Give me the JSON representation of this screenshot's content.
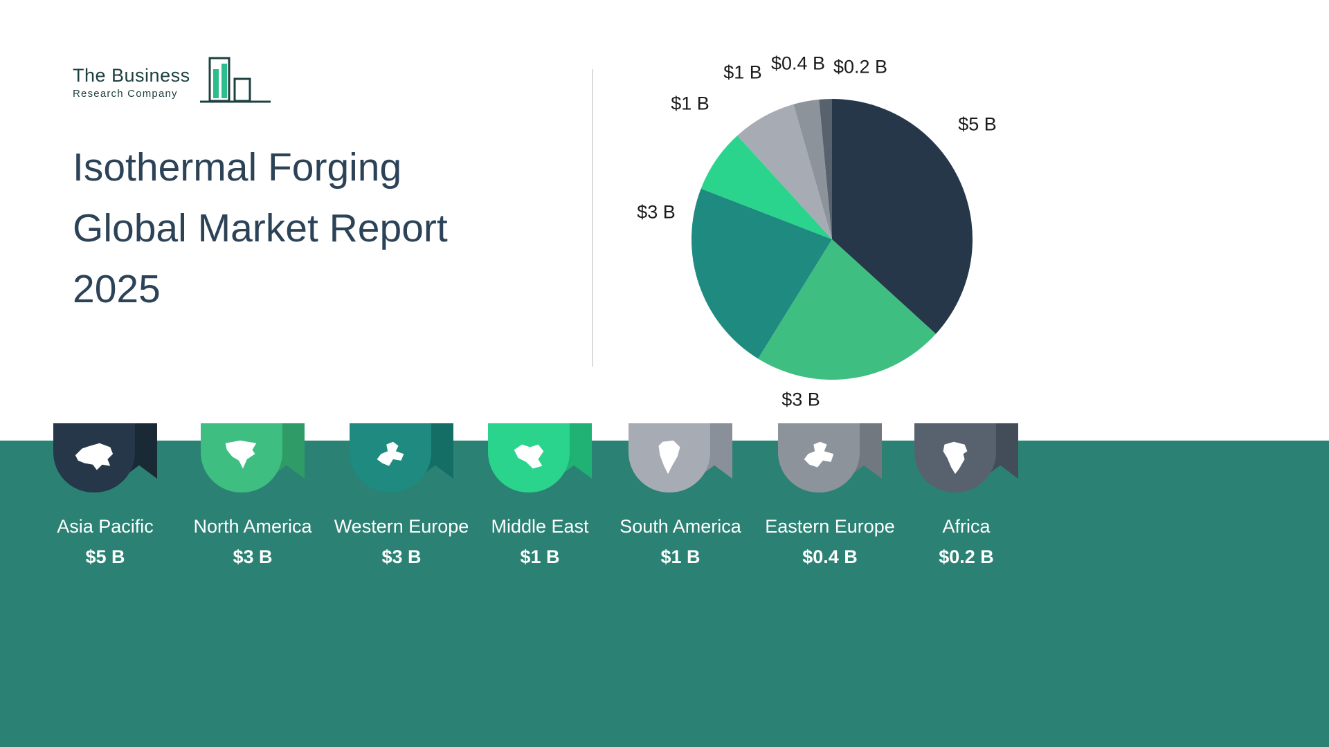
{
  "logo": {
    "line1": "The Business",
    "line2": "Research Company"
  },
  "title": {
    "line1": "Isothermal Forging",
    "line2": "Global Market Report",
    "line3": "2025"
  },
  "chart_data": {
    "type": "pie",
    "labels": [
      "Asia Pacific",
      "North America",
      "Western Europe",
      "Middle East",
      "South America",
      "Eastern Europe",
      "Africa"
    ],
    "values": [
      5,
      3,
      3,
      1,
      1,
      0.4,
      0.2
    ],
    "value_labels": [
      "$5 B",
      "$3 B",
      "$3 B",
      "$1 B",
      "$1 B",
      "$0.4 B",
      "$0.2 B"
    ],
    "colors": [
      "#253749",
      "#3fbe82",
      "#1e8a80",
      "#2bd48c",
      "#a7acb4",
      "#8d939b",
      "#57626e"
    ],
    "start_angle_deg": 0,
    "direction": "clockwise",
    "legend_position": "bottom"
  },
  "regions": [
    {
      "name": "Asia Pacific",
      "value": "$5 B",
      "color": "#253749",
      "fold_color": "#1a2936"
    },
    {
      "name": "North America",
      "value": "$3 B",
      "color": "#3fbe82",
      "fold_color": "#2f9c68"
    },
    {
      "name": "Western Europe",
      "value": "$3 B",
      "color": "#1e8a80",
      "fold_color": "#156e66"
    },
    {
      "name": "Middle East",
      "value": "$1 B",
      "color": "#2bd48c",
      "fold_color": "#1fb274"
    },
    {
      "name": "South America",
      "value": "$1 B",
      "color": "#a7acb4",
      "fold_color": "#8a9099"
    },
    {
      "name": "Eastern Europe",
      "value": "$0.4 B",
      "color": "#8d939b",
      "fold_color": "#71787f"
    },
    {
      "name": "Africa",
      "value": "$0.2 B",
      "color": "#57626e",
      "fold_color": "#434d58"
    }
  ],
  "theme": {
    "band_color": "#2b8173",
    "title_color": "#2b4257",
    "logo_green": "#2bbd8c",
    "logo_dark": "#1d4040"
  }
}
